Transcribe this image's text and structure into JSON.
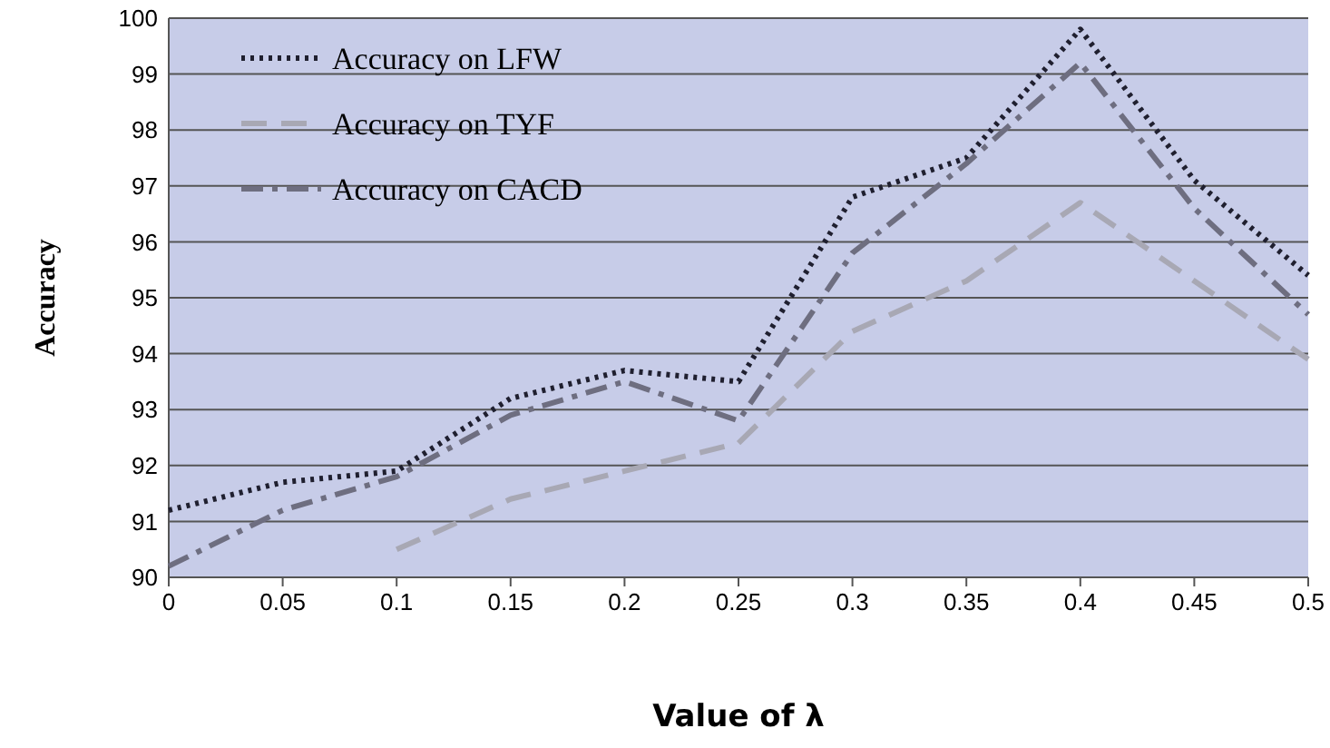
{
  "chart_data": {
    "type": "line",
    "xlabel": "Value of λ",
    "ylabel": "Accuracy",
    "x": [
      0,
      0.05,
      0.1,
      0.15,
      0.2,
      0.25,
      0.3,
      0.35,
      0.4,
      0.45,
      0.5
    ],
    "series": [
      {
        "name": "Accuracy on LFW",
        "color": "#1f1f2f",
        "line_style": "dotted",
        "values": [
          91.2,
          91.7,
          91.9,
          93.2,
          93.7,
          93.5,
          96.8,
          97.5,
          99.8,
          97.1,
          95.4
        ]
      },
      {
        "name": "Accuracy on TYF",
        "color": "#a8a8b4",
        "line_style": "dashed",
        "values": [
          null,
          null,
          90.5,
          91.4,
          91.9,
          92.4,
          94.4,
          95.3,
          96.7,
          95.3,
          93.9
        ]
      },
      {
        "name": "Accuracy on CACD",
        "color": "#6e6e80",
        "line_style": "dashdot",
        "values": [
          90.2,
          91.2,
          91.8,
          92.9,
          93.5,
          92.8,
          95.8,
          97.4,
          99.2,
          96.6,
          94.7
        ]
      }
    ],
    "xlim": [
      0,
      0.5
    ],
    "xticks": [
      0,
      0.05,
      0.1,
      0.15,
      0.2,
      0.25,
      0.3,
      0.35,
      0.4,
      0.45,
      0.5
    ],
    "ylim": [
      90,
      100
    ],
    "yticks": [
      90,
      91,
      92,
      93,
      94,
      95,
      96,
      97,
      98,
      99,
      100
    ],
    "grid": "y",
    "legend": "top left",
    "marker": "none"
  }
}
